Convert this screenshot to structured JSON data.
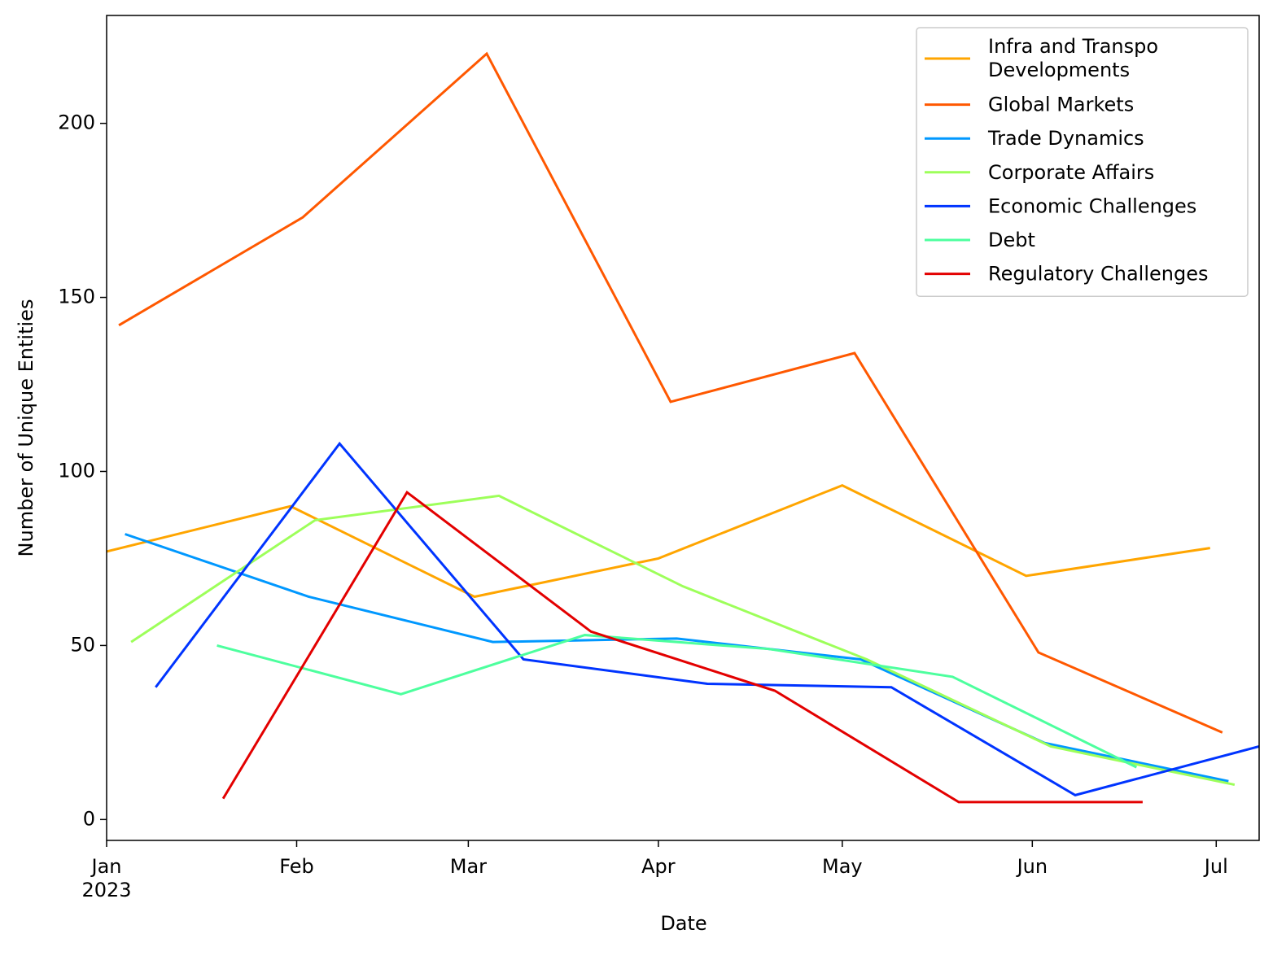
{
  "chart_data": {
    "type": "line",
    "xlabel": "Date",
    "ylabel": "Number of Unique Entities",
    "xlim": [
      "2023-01-01",
      "2023-07-08"
    ],
    "ylim": [
      -6,
      231
    ],
    "xticks": [
      {
        "value": "2023-01-01",
        "label": "Jan\n2023"
      },
      {
        "value": "2023-02-01",
        "label": "Feb"
      },
      {
        "value": "2023-03-01",
        "label": "Mar"
      },
      {
        "value": "2023-04-01",
        "label": "Apr"
      },
      {
        "value": "2023-05-01",
        "label": "May"
      },
      {
        "value": "2023-06-01",
        "label": "Jun"
      },
      {
        "value": "2023-07-01",
        "label": "Jul"
      }
    ],
    "yticks": [
      0,
      50,
      100,
      150,
      200
    ],
    "legend": "upper right",
    "series": [
      {
        "name": "Infra and Transpo\nDevelopments",
        "color": "#ffa500",
        "x": [
          "2023-01-01",
          "2023-01-31",
          "2023-03-02",
          "2023-04-01",
          "2023-05-01",
          "2023-05-31",
          "2023-06-30"
        ],
        "values": [
          77,
          90,
          64,
          75,
          96,
          70,
          78
        ]
      },
      {
        "name": "Global Markets",
        "color": "#ff5800",
        "x": [
          "2023-01-03",
          "2023-02-02",
          "2023-03-04",
          "2023-04-03",
          "2023-05-03",
          "2023-06-02",
          "2023-07-02"
        ],
        "values": [
          142,
          173,
          220,
          120,
          134,
          48,
          25
        ]
      },
      {
        "name": "Trade Dynamics",
        "color": "#0098ff",
        "x": [
          "2023-01-04",
          "2023-02-03",
          "2023-03-05",
          "2023-04-04",
          "2023-05-04",
          "2023-06-03",
          "2023-07-03"
        ],
        "values": [
          82,
          64,
          51,
          52,
          46,
          22,
          11
        ]
      },
      {
        "name": "Corporate Affairs",
        "color": "#9dff5a",
        "x": [
          "2023-01-05",
          "2023-02-04",
          "2023-03-06",
          "2023-04-05",
          "2023-05-05",
          "2023-06-04",
          "2023-07-04"
        ],
        "values": [
          51,
          86,
          93,
          67,
          46,
          21,
          10
        ]
      },
      {
        "name": "Economic Challenges",
        "color": "#0034ff",
        "x": [
          "2023-01-09",
          "2023-02-08",
          "2023-03-10",
          "2023-04-09",
          "2023-05-09",
          "2023-06-08",
          "2023-07-08"
        ],
        "values": [
          38,
          108,
          46,
          39,
          38,
          7,
          21
        ]
      },
      {
        "name": "Debt",
        "color": "#4dff9e",
        "x": [
          "2023-01-19",
          "2023-02-18",
          "2023-03-20",
          "2023-04-19",
          "2023-05-19",
          "2023-06-18"
        ],
        "values": [
          50,
          36,
          53,
          49,
          41,
          15
        ]
      },
      {
        "name": "Regulatory Challenges",
        "color": "#e30000",
        "x": [
          "2023-01-20",
          "2023-02-19",
          "2023-03-21",
          "2023-04-20",
          "2023-05-20",
          "2023-06-19"
        ],
        "values": [
          6,
          94,
          54,
          37,
          5,
          5
        ]
      }
    ]
  }
}
